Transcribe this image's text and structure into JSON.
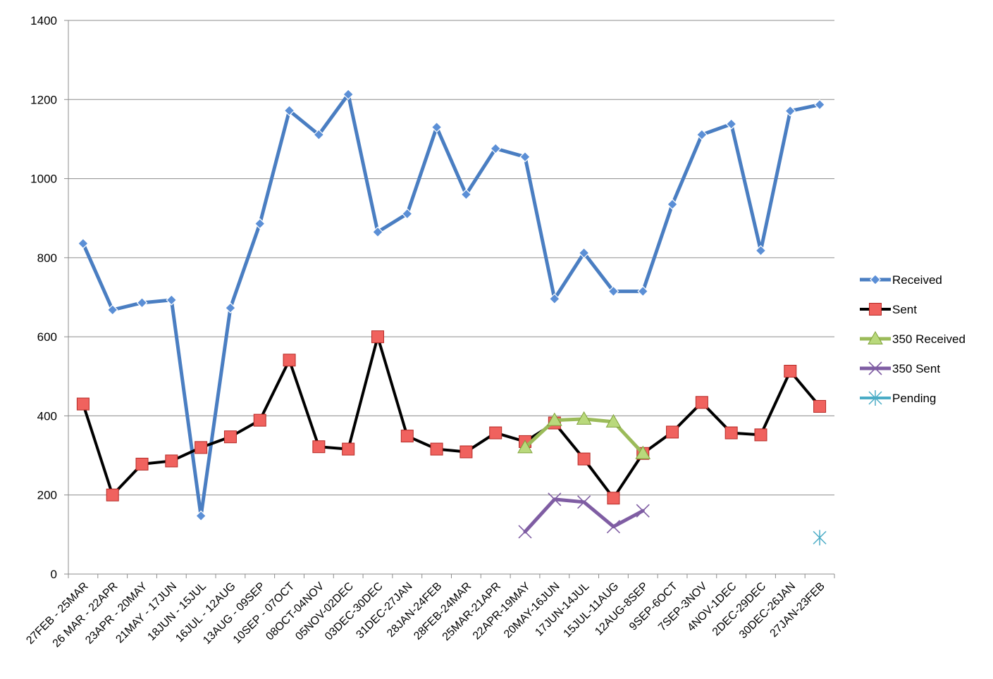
{
  "chart_data": {
    "type": "line",
    "title": "",
    "xlabel": "",
    "ylabel": "",
    "ylim": [
      0,
      1400
    ],
    "yticks": [
      0,
      200,
      400,
      600,
      800,
      1000,
      1200,
      1400
    ],
    "grid": "horizontal",
    "legend_position": "right",
    "categories": [
      "27FEB - 25MAR",
      "26 MAR - 22APR",
      "23APR - 20MAY",
      "21MAY - 17JUN",
      "18JUN - 15JUL",
      "16JUL - 12AUG",
      "13AUG - 09SEP",
      "10SEP - 07OCT",
      "08OCT-04NOV",
      "05NOV-02DEC",
      "03DEC-30DEC",
      "31DEC-27JAN",
      "28JAN-24FEB",
      "28FEB-24MAR",
      "25MAR-21APR",
      "22APR-19MAY",
      "20MAY-16JUN",
      "17JUN-14JUL",
      "15JUL-11AUG",
      "12AUG-8SEP",
      "9SEP-6OCT",
      "7SEP-3NOV",
      "4NOV-1DEC",
      "2DEC-29DEC",
      "30DEC-26JAN",
      "27JAN-23FEB"
    ],
    "series": [
      {
        "name": "Received",
        "color": "#4a7ec2",
        "marker": "diamond",
        "values": [
          836,
          668,
          686,
          693,
          147,
          673,
          886,
          1172,
          1111,
          1213,
          865,
          911,
          1130,
          960,
          1076,
          1055,
          696,
          812,
          715,
          715,
          935,
          1111,
          1138,
          818,
          1171,
          1187
        ]
      },
      {
        "name": "Sent",
        "color": "#000000",
        "marker": "square",
        "values": [
          430,
          200,
          278,
          286,
          320,
          347,
          389,
          541,
          322,
          316,
          600,
          349,
          316,
          309,
          357,
          335,
          382,
          291,
          192,
          305,
          359,
          434,
          357,
          352,
          513,
          424
        ]
      },
      {
        "name": "350 Received",
        "color": "#9bbb59",
        "marker": "triangle",
        "values": [
          null,
          null,
          null,
          null,
          null,
          null,
          null,
          null,
          null,
          null,
          null,
          null,
          null,
          null,
          null,
          320,
          389,
          392,
          385,
          305,
          null,
          null,
          null,
          null,
          null,
          null
        ]
      },
      {
        "name": "350 Sent",
        "color": "#7f5da3",
        "marker": "x",
        "values": [
          null,
          null,
          null,
          null,
          null,
          null,
          null,
          null,
          null,
          null,
          null,
          null,
          null,
          null,
          null,
          107,
          189,
          182,
          120,
          160,
          null,
          null,
          null,
          null,
          null,
          null
        ]
      },
      {
        "name": "Pending",
        "color": "#4bacc6",
        "marker": "star",
        "values": [
          null,
          null,
          null,
          null,
          null,
          null,
          null,
          null,
          null,
          null,
          null,
          null,
          null,
          null,
          null,
          null,
          null,
          null,
          null,
          null,
          null,
          null,
          null,
          null,
          null,
          92
        ]
      }
    ]
  }
}
